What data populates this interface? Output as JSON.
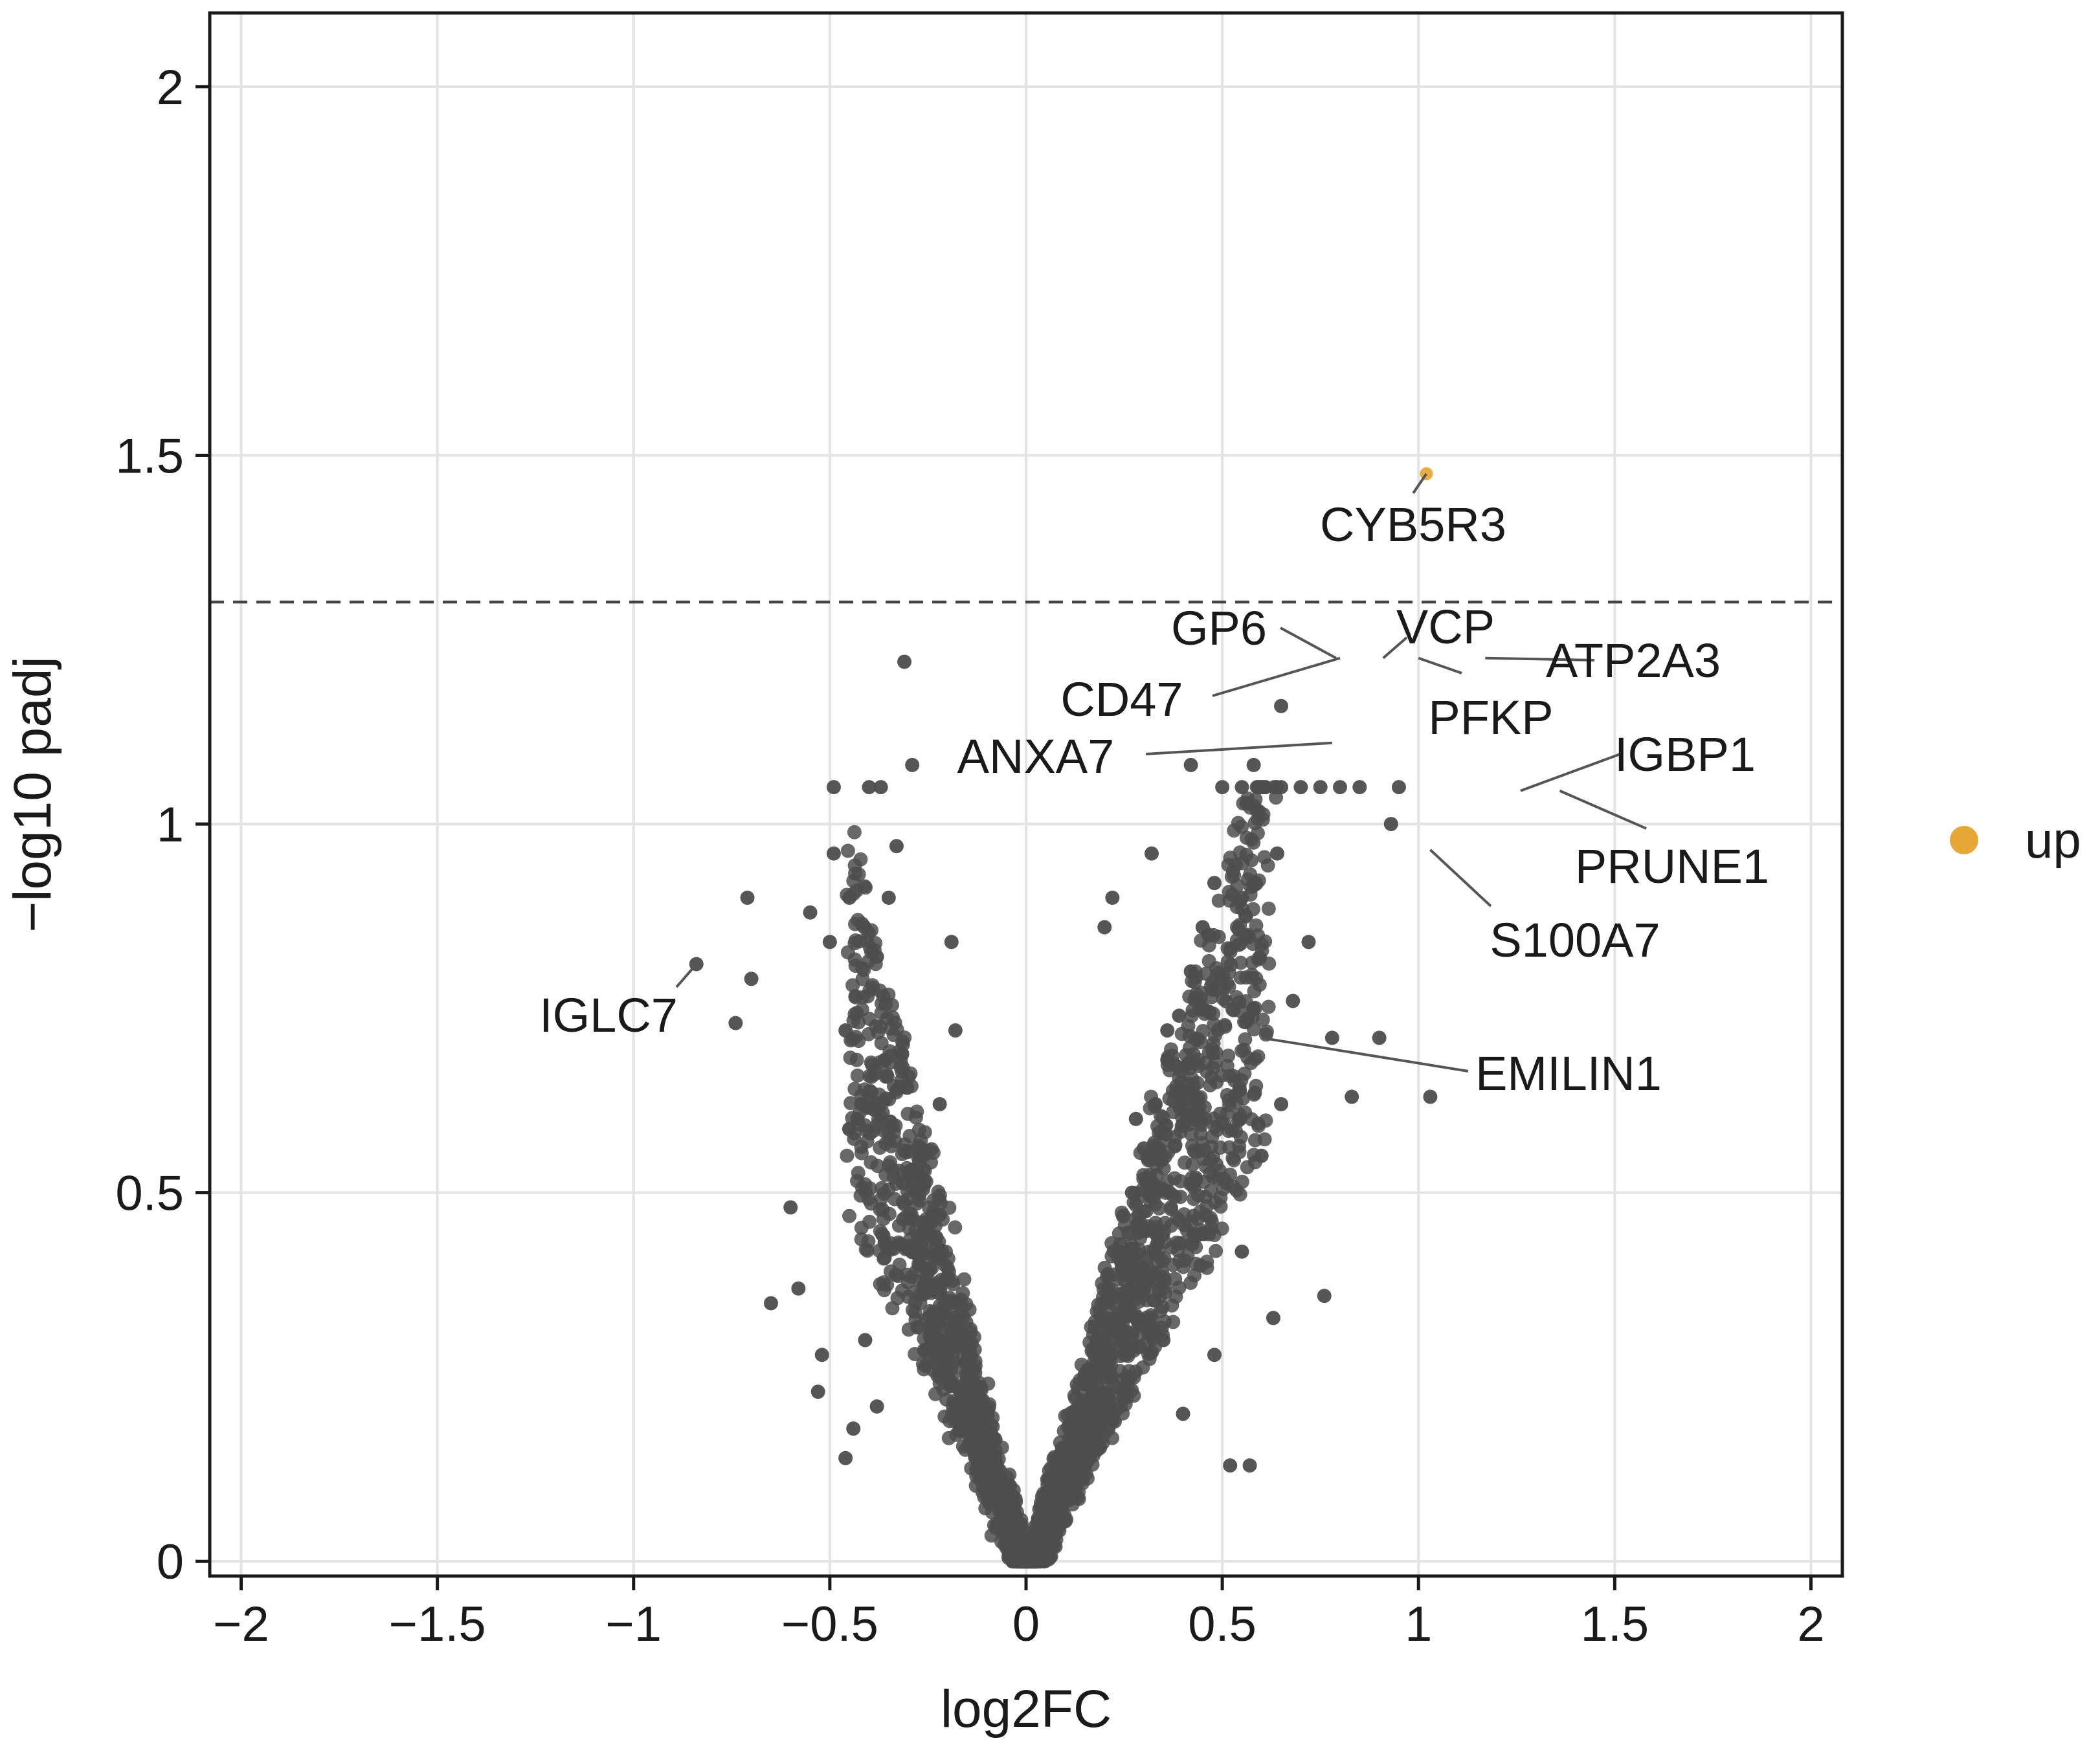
{
  "chart_data": {
    "type": "scatter",
    "title": "",
    "xlabel": "log2FC",
    "ylabel": "−log10 padj",
    "xlim": [
      -2.08,
      2.08
    ],
    "ylim": [
      -0.02,
      2.1
    ],
    "xticks": [
      -2,
      -1.5,
      -1,
      -0.5,
      0,
      0.5,
      1,
      1.5,
      2
    ],
    "xtick_labels": [
      "−2",
      "−1.5",
      "−1",
      "−0.5",
      "0",
      "0.5",
      "1",
      "1.5",
      "2"
    ],
    "yticks": [
      0,
      0.5,
      1,
      1.5,
      2
    ],
    "ytick_labels": [
      "0",
      "0.5",
      "1",
      "1.5",
      "2"
    ],
    "grid": true,
    "threshold_line": {
      "y": 1.301,
      "style": "dashed"
    },
    "legend": {
      "placement": "right",
      "entries": [
        {
          "name": "up",
          "color": "#E8A838"
        }
      ]
    },
    "colors": {
      "not_significant": "#4D4D4D",
      "up": "#E8A838"
    },
    "series": [
      {
        "name": "up",
        "points": [
          {
            "x": 1.02,
            "y": 1.475
          }
        ]
      },
      {
        "name": "",
        "points": [
          {
            "x": -0.84,
            "y": 0.81
          },
          {
            "x": -0.74,
            "y": 0.73
          },
          {
            "x": -0.7,
            "y": 0.79
          },
          {
            "x": -0.71,
            "y": 0.9
          },
          {
            "x": -0.6,
            "y": 0.48
          },
          {
            "x": -0.58,
            "y": 0.37
          },
          {
            "x": -0.65,
            "y": 0.35
          },
          {
            "x": -0.53,
            "y": 0.23
          },
          {
            "x": -0.55,
            "y": 0.88
          },
          {
            "x": -0.5,
            "y": 0.84
          },
          {
            "x": -0.49,
            "y": 1.05
          },
          {
            "x": -0.49,
            "y": 0.96
          },
          {
            "x": -0.4,
            "y": 1.05
          },
          {
            "x": -0.37,
            "y": 1.05
          },
          {
            "x": -0.33,
            "y": 0.97
          },
          {
            "x": -0.29,
            "y": 1.08
          },
          {
            "x": -0.31,
            "y": 1.22
          },
          {
            "x": -0.35,
            "y": 0.9
          },
          {
            "x": -0.38,
            "y": 0.82
          },
          {
            "x": -0.45,
            "y": 0.9
          },
          {
            "x": -0.43,
            "y": 0.6
          },
          {
            "x": -0.36,
            "y": 0.68
          },
          {
            "x": -0.27,
            "y": 0.55
          },
          {
            "x": -0.22,
            "y": 0.62
          },
          {
            "x": -0.18,
            "y": 0.72
          },
          {
            "x": -0.19,
            "y": 0.84
          },
          {
            "x": -0.46,
            "y": 0.72
          },
          {
            "x": -0.41,
            "y": 0.3
          },
          {
            "x": -0.38,
            "y": 0.21
          },
          {
            "x": 0.76,
            "y": 0.36
          },
          {
            "x": 0.95,
            "y": 1.05
          },
          {
            "x": 0.93,
            "y": 1.0
          },
          {
            "x": 1.03,
            "y": 0.63
          },
          {
            "x": 0.83,
            "y": 0.63
          },
          {
            "x": 0.9,
            "y": 0.71
          },
          {
            "x": 0.78,
            "y": 0.71
          },
          {
            "x": 0.65,
            "y": 1.16
          },
          {
            "x": 0.63,
            "y": 0.33
          },
          {
            "x": 0.57,
            "y": 0.13
          },
          {
            "x": 0.52,
            "y": 0.13
          },
          {
            "x": -0.52,
            "y": 0.28
          },
          {
            "x": -0.46,
            "y": 0.14
          },
          {
            "x": -0.44,
            "y": 0.18
          },
          {
            "x": -0.32,
            "y": 0.43
          },
          {
            "x": -0.28,
            "y": 0.5
          },
          {
            "x": -0.26,
            "y": 0.45
          },
          {
            "x": -0.22,
            "y": 0.47
          },
          {
            "x": -0.2,
            "y": 0.35
          },
          {
            "x": -0.17,
            "y": 0.3
          },
          {
            "x": -0.15,
            "y": 0.25
          },
          {
            "x": -0.13,
            "y": 0.2
          },
          {
            "x": -0.11,
            "y": 0.16
          },
          {
            "x": -0.09,
            "y": 0.12
          },
          {
            "x": -0.07,
            "y": 0.08
          },
          {
            "x": -0.05,
            "y": 0.05
          },
          {
            "x": -0.03,
            "y": 0.03
          },
          {
            "x": -0.01,
            "y": 0.01
          },
          {
            "x": 0.01,
            "y": 0.01
          },
          {
            "x": 0.03,
            "y": 0.03
          },
          {
            "x": 0.05,
            "y": 0.06
          },
          {
            "x": 0.07,
            "y": 0.09
          },
          {
            "x": 0.09,
            "y": 0.13
          },
          {
            "x": 0.12,
            "y": 0.18
          },
          {
            "x": 0.15,
            "y": 0.24
          },
          {
            "x": 0.18,
            "y": 0.3
          },
          {
            "x": 0.21,
            "y": 0.37
          },
          {
            "x": 0.24,
            "y": 0.43
          },
          {
            "x": 0.27,
            "y": 0.5
          },
          {
            "x": 0.3,
            "y": 0.56
          },
          {
            "x": 0.33,
            "y": 0.62
          },
          {
            "x": 0.36,
            "y": 0.68
          },
          {
            "x": 0.39,
            "y": 0.74
          },
          {
            "x": 0.42,
            "y": 0.8
          },
          {
            "x": 0.45,
            "y": 0.86
          },
          {
            "x": 0.48,
            "y": 0.92
          },
          {
            "x": 0.5,
            "y": 1.05
          },
          {
            "x": 0.55,
            "y": 1.05
          },
          {
            "x": 0.6,
            "y": 1.05
          },
          {
            "x": 0.65,
            "y": 1.05
          },
          {
            "x": 0.7,
            "y": 1.05
          },
          {
            "x": 0.75,
            "y": 1.05
          },
          {
            "x": 0.8,
            "y": 1.05
          },
          {
            "x": 0.85,
            "y": 1.05
          },
          {
            "x": 0.58,
            "y": 1.08
          },
          {
            "x": 0.42,
            "y": 1.08
          },
          {
            "x": 0.32,
            "y": 0.96
          },
          {
            "x": 0.22,
            "y": 0.9
          },
          {
            "x": 0.2,
            "y": 0.86
          },
          {
            "x": 0.36,
            "y": 0.72
          },
          {
            "x": 0.28,
            "y": 0.6
          },
          {
            "x": 0.25,
            "y": 0.4
          },
          {
            "x": 0.35,
            "y": 0.3
          },
          {
            "x": 0.4,
            "y": 0.2
          },
          {
            "x": 0.48,
            "y": 0.28
          },
          {
            "x": 0.55,
            "y": 0.42
          },
          {
            "x": 0.6,
            "y": 0.55
          },
          {
            "x": 0.65,
            "y": 0.62
          },
          {
            "x": 0.68,
            "y": 0.76
          },
          {
            "x": 0.72,
            "y": 0.84
          },
          {
            "x": 0.64,
            "y": 0.96
          },
          {
            "x": 0.55,
            "y": 0.9
          },
          {
            "x": 0.58,
            "y": 0.75
          }
        ]
      }
    ],
    "annotations": [
      {
        "label": "CYB5R3",
        "x": 1.02,
        "y": 1.475
      },
      {
        "label": "GP6",
        "x": 0.79,
        "y": 1.225
      },
      {
        "label": "VCP",
        "x": 0.91,
        "y": 1.225
      },
      {
        "label": "CD47",
        "x": 0.8,
        "y": 1.225
      },
      {
        "label": "PFKP",
        "x": 1.0,
        "y": 1.225
      },
      {
        "label": "ATP2A3",
        "x": 1.17,
        "y": 1.225
      },
      {
        "label": "ANXA7",
        "x": 0.78,
        "y": 1.11
      },
      {
        "label": "IGBP1",
        "x": 1.26,
        "y": 1.045
      },
      {
        "label": "PRUNE1",
        "x": 1.36,
        "y": 1.045
      },
      {
        "label": "S100A7",
        "x": 1.03,
        "y": 0.965
      },
      {
        "label": "IGLC7",
        "x": -0.84,
        "y": 0.81
      },
      {
        "label": "EMILIN1",
        "x": 0.6,
        "y": 0.71
      }
    ]
  }
}
